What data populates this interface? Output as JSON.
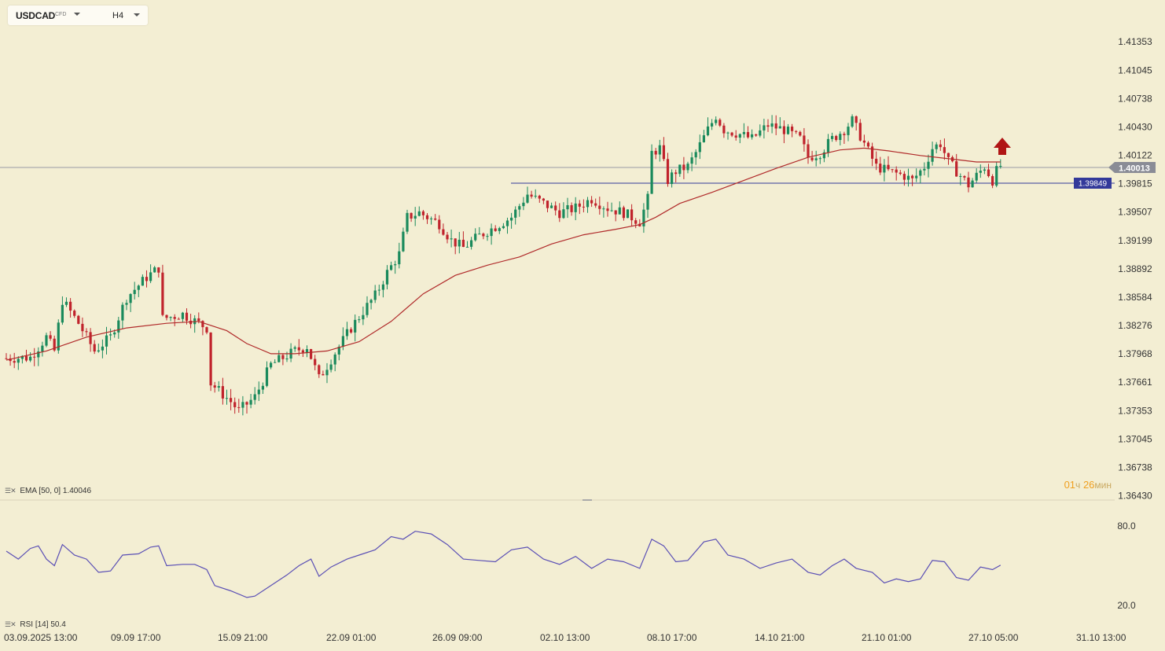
{
  "symbol": {
    "name": "USDCAD",
    "type": "CFD",
    "timeframe": "H4"
  },
  "indicators": {
    "ema_label": "EMA [50, 0]",
    "ema_value": "1.40046",
    "rsi_label": "RSI [14]",
    "rsi_value": "50.4"
  },
  "timer": {
    "hours": "01",
    "h_unit": "ч",
    "minutes": "26",
    "m_unit": "мин"
  },
  "colors": {
    "background": "#f3eed3",
    "bull": "#1a8a5c",
    "bear": "#c0232c",
    "ema": "#b02a2a",
    "rsi": "#5a4fb5",
    "current_price_tag": "#8a8c96",
    "level_tag": "#33399a",
    "arrow": "#b01515"
  },
  "chart_data": {
    "type": "candlestick",
    "symbol": "USDCAD",
    "timeframe": "H4",
    "price_axis": {
      "ticks": [
        "1.41353",
        "1.41045",
        "1.40738",
        "1.40430",
        "1.40122",
        "1.39815",
        "1.39507",
        "1.39199",
        "1.38892",
        "1.38584",
        "1.38276",
        "1.37968",
        "1.37661",
        "1.37353",
        "1.37045",
        "1.36738",
        "1.36430"
      ],
      "range": [
        1.3643,
        1.4135
      ]
    },
    "time_axis": {
      "labels": [
        "03.09.2025  13:00",
        "09.09  17:00",
        "15.09  21:00",
        "22.09  01:00",
        "26.09  09:00",
        "02.10  13:00",
        "08.10  17:00",
        "14.10  21:00",
        "21.10  01:00",
        "27.10  05:00",
        "31.10  13:00"
      ]
    },
    "current_price": "1.40013",
    "horizontal_level": "1.39849",
    "signal": "buy-arrow-up",
    "close_path": [
      {
        "t": 0,
        "p": 1.3792
      },
      {
        "t": 6,
        "p": 1.3793
      },
      {
        "t": 10,
        "p": 1.3815
      },
      {
        "t": 12,
        "p": 1.38
      },
      {
        "t": 14,
        "p": 1.3855
      },
      {
        "t": 18,
        "p": 1.383
      },
      {
        "t": 22,
        "p": 1.38
      },
      {
        "t": 26,
        "p": 1.3815
      },
      {
        "t": 30,
        "p": 1.3858
      },
      {
        "t": 35,
        "p": 1.388
      },
      {
        "t": 38,
        "p": 1.389
      },
      {
        "t": 39,
        "p": 1.3835
      },
      {
        "t": 44,
        "p": 1.384
      },
      {
        "t": 48,
        "p": 1.383
      },
      {
        "t": 50,
        "p": 1.3825
      },
      {
        "t": 51,
        "p": 1.3765
      },
      {
        "t": 56,
        "p": 1.3745
      },
      {
        "t": 58,
        "p": 1.3735
      },
      {
        "t": 62,
        "p": 1.375
      },
      {
        "t": 66,
        "p": 1.3785
      },
      {
        "t": 72,
        "p": 1.38
      },
      {
        "t": 75,
        "p": 1.3805
      },
      {
        "t": 78,
        "p": 1.377
      },
      {
        "t": 82,
        "p": 1.3798
      },
      {
        "t": 86,
        "p": 1.3825
      },
      {
        "t": 89,
        "p": 1.3843
      },
      {
        "t": 92,
        "p": 1.386
      },
      {
        "t": 95,
        "p": 1.3885
      },
      {
        "t": 98,
        "p": 1.3905
      },
      {
        "t": 100,
        "p": 1.3945
      },
      {
        "t": 103,
        "p": 1.395
      },
      {
        "t": 108,
        "p": 1.3938
      },
      {
        "t": 111,
        "p": 1.392
      },
      {
        "t": 114,
        "p": 1.3912
      },
      {
        "t": 118,
        "p": 1.3925
      },
      {
        "t": 122,
        "p": 1.3935
      },
      {
        "t": 126,
        "p": 1.3945
      },
      {
        "t": 130,
        "p": 1.397
      },
      {
        "t": 134,
        "p": 1.396
      },
      {
        "t": 138,
        "p": 1.395
      },
      {
        "t": 142,
        "p": 1.3955
      },
      {
        "t": 146,
        "p": 1.3965
      },
      {
        "t": 150,
        "p": 1.3955
      },
      {
        "t": 154,
        "p": 1.395
      },
      {
        "t": 158,
        "p": 1.394
      },
      {
        "t": 160,
        "p": 1.3965
      },
      {
        "t": 161,
        "p": 1.4015
      },
      {
        "t": 163,
        "p": 1.402
      },
      {
        "t": 165,
        "p": 1.3985
      },
      {
        "t": 167,
        "p": 1.3995
      },
      {
        "t": 170,
        "p": 1.4
      },
      {
        "t": 172,
        "p": 1.4015
      },
      {
        "t": 175,
        "p": 1.404
      },
      {
        "t": 177,
        "p": 1.4055
      },
      {
        "t": 179,
        "p": 1.404
      },
      {
        "t": 183,
        "p": 1.4035
      },
      {
        "t": 186,
        "p": 1.403
      },
      {
        "t": 190,
        "p": 1.4045
      },
      {
        "t": 194,
        "p": 1.404
      },
      {
        "t": 198,
        "p": 1.403
      },
      {
        "t": 200,
        "p": 1.401
      },
      {
        "t": 203,
        "p": 1.4015
      },
      {
        "t": 206,
        "p": 1.403
      },
      {
        "t": 209,
        "p": 1.404
      },
      {
        "t": 211,
        "p": 1.405
      },
      {
        "t": 214,
        "p": 1.4025
      },
      {
        "t": 217,
        "p": 1.4
      },
      {
        "t": 220,
        "p": 1.3995
      },
      {
        "t": 224,
        "p": 1.399
      },
      {
        "t": 226,
        "p": 1.3985
      },
      {
        "t": 229,
        "p": 1.4
      },
      {
        "t": 231,
        "p": 1.402
      },
      {
        "t": 233,
        "p": 1.4025
      },
      {
        "t": 235,
        "p": 1.4005
      },
      {
        "t": 238,
        "p": 1.399
      },
      {
        "t": 240,
        "p": 1.398
      },
      {
        "t": 242,
        "p": 1.399
      },
      {
        "t": 244,
        "p": 1.4
      },
      {
        "t": 246,
        "p": 1.3985
      },
      {
        "t": 247,
        "p": 1.3995
      },
      {
        "t": 248,
        "p": 1.4001
      }
    ],
    "ema_path": [
      {
        "t": 0,
        "p": 1.379
      },
      {
        "t": 10,
        "p": 1.38
      },
      {
        "t": 20,
        "p": 1.3815
      },
      {
        "t": 30,
        "p": 1.3825
      },
      {
        "t": 40,
        "p": 1.383
      },
      {
        "t": 48,
        "p": 1.3832
      },
      {
        "t": 55,
        "p": 1.3822
      },
      {
        "t": 60,
        "p": 1.3808
      },
      {
        "t": 66,
        "p": 1.3797
      },
      {
        "t": 72,
        "p": 1.3797
      },
      {
        "t": 80,
        "p": 1.38
      },
      {
        "t": 88,
        "p": 1.381
      },
      {
        "t": 96,
        "p": 1.3832
      },
      {
        "t": 104,
        "p": 1.3862
      },
      {
        "t": 112,
        "p": 1.3882
      },
      {
        "t": 120,
        "p": 1.3893
      },
      {
        "t": 128,
        "p": 1.3902
      },
      {
        "t": 136,
        "p": 1.3916
      },
      {
        "t": 144,
        "p": 1.3926
      },
      {
        "t": 152,
        "p": 1.3932
      },
      {
        "t": 158,
        "p": 1.3937
      },
      {
        "t": 162,
        "p": 1.3945
      },
      {
        "t": 168,
        "p": 1.396
      },
      {
        "t": 176,
        "p": 1.3972
      },
      {
        "t": 184,
        "p": 1.3985
      },
      {
        "t": 192,
        "p": 1.3998
      },
      {
        "t": 200,
        "p": 1.401
      },
      {
        "t": 208,
        "p": 1.4018
      },
      {
        "t": 214,
        "p": 1.402
      },
      {
        "t": 220,
        "p": 1.4017
      },
      {
        "t": 228,
        "p": 1.4012
      },
      {
        "t": 236,
        "p": 1.4008
      },
      {
        "t": 242,
        "p": 1.4005
      },
      {
        "t": 248,
        "p": 1.4005
      }
    ],
    "rsi": {
      "ticks": [
        "80.0",
        "20.0"
      ],
      "range": [
        20,
        80
      ],
      "path": [
        {
          "t": 0,
          "v": 61
        },
        {
          "t": 3,
          "v": 55
        },
        {
          "t": 6,
          "v": 63
        },
        {
          "t": 8,
          "v": 65
        },
        {
          "t": 10,
          "v": 55
        },
        {
          "t": 12,
          "v": 50
        },
        {
          "t": 14,
          "v": 66
        },
        {
          "t": 17,
          "v": 58
        },
        {
          "t": 20,
          "v": 55
        },
        {
          "t": 23,
          "v": 45
        },
        {
          "t": 26,
          "v": 46
        },
        {
          "t": 29,
          "v": 58
        },
        {
          "t": 33,
          "v": 59
        },
        {
          "t": 36,
          "v": 64
        },
        {
          "t": 38,
          "v": 65
        },
        {
          "t": 40,
          "v": 50
        },
        {
          "t": 44,
          "v": 51
        },
        {
          "t": 47,
          "v": 51
        },
        {
          "t": 50,
          "v": 47
        },
        {
          "t": 52,
          "v": 35
        },
        {
          "t": 56,
          "v": 31
        },
        {
          "t": 60,
          "v": 26
        },
        {
          "t": 62,
          "v": 27
        },
        {
          "t": 66,
          "v": 35
        },
        {
          "t": 70,
          "v": 43
        },
        {
          "t": 73,
          "v": 50
        },
        {
          "t": 76,
          "v": 55
        },
        {
          "t": 78,
          "v": 42
        },
        {
          "t": 81,
          "v": 49
        },
        {
          "t": 85,
          "v": 55
        },
        {
          "t": 88,
          "v": 58
        },
        {
          "t": 92,
          "v": 62
        },
        {
          "t": 96,
          "v": 72
        },
        {
          "t": 99,
          "v": 70
        },
        {
          "t": 102,
          "v": 76
        },
        {
          "t": 106,
          "v": 74
        },
        {
          "t": 110,
          "v": 66
        },
        {
          "t": 114,
          "v": 55
        },
        {
          "t": 118,
          "v": 54
        },
        {
          "t": 122,
          "v": 53
        },
        {
          "t": 126,
          "v": 62
        },
        {
          "t": 130,
          "v": 64
        },
        {
          "t": 134,
          "v": 55
        },
        {
          "t": 138,
          "v": 51
        },
        {
          "t": 142,
          "v": 57
        },
        {
          "t": 146,
          "v": 48
        },
        {
          "t": 150,
          "v": 55
        },
        {
          "t": 154,
          "v": 53
        },
        {
          "t": 158,
          "v": 48
        },
        {
          "t": 161,
          "v": 70
        },
        {
          "t": 164,
          "v": 65
        },
        {
          "t": 167,
          "v": 53
        },
        {
          "t": 170,
          "v": 54
        },
        {
          "t": 174,
          "v": 68
        },
        {
          "t": 177,
          "v": 70
        },
        {
          "t": 180,
          "v": 58
        },
        {
          "t": 184,
          "v": 55
        },
        {
          "t": 188,
          "v": 48
        },
        {
          "t": 192,
          "v": 52
        },
        {
          "t": 196,
          "v": 55
        },
        {
          "t": 200,
          "v": 45
        },
        {
          "t": 203,
          "v": 43
        },
        {
          "t": 206,
          "v": 50
        },
        {
          "t": 209,
          "v": 55
        },
        {
          "t": 212,
          "v": 48
        },
        {
          "t": 216,
          "v": 45
        },
        {
          "t": 219,
          "v": 37
        },
        {
          "t": 222,
          "v": 40
        },
        {
          "t": 225,
          "v": 38
        },
        {
          "t": 228,
          "v": 40
        },
        {
          "t": 231,
          "v": 54
        },
        {
          "t": 234,
          "v": 53
        },
        {
          "t": 237,
          "v": 41
        },
        {
          "t": 240,
          "v": 39
        },
        {
          "t": 243,
          "v": 49
        },
        {
          "t": 246,
          "v": 47
        },
        {
          "t": 248,
          "v": 50.4
        }
      ]
    }
  }
}
